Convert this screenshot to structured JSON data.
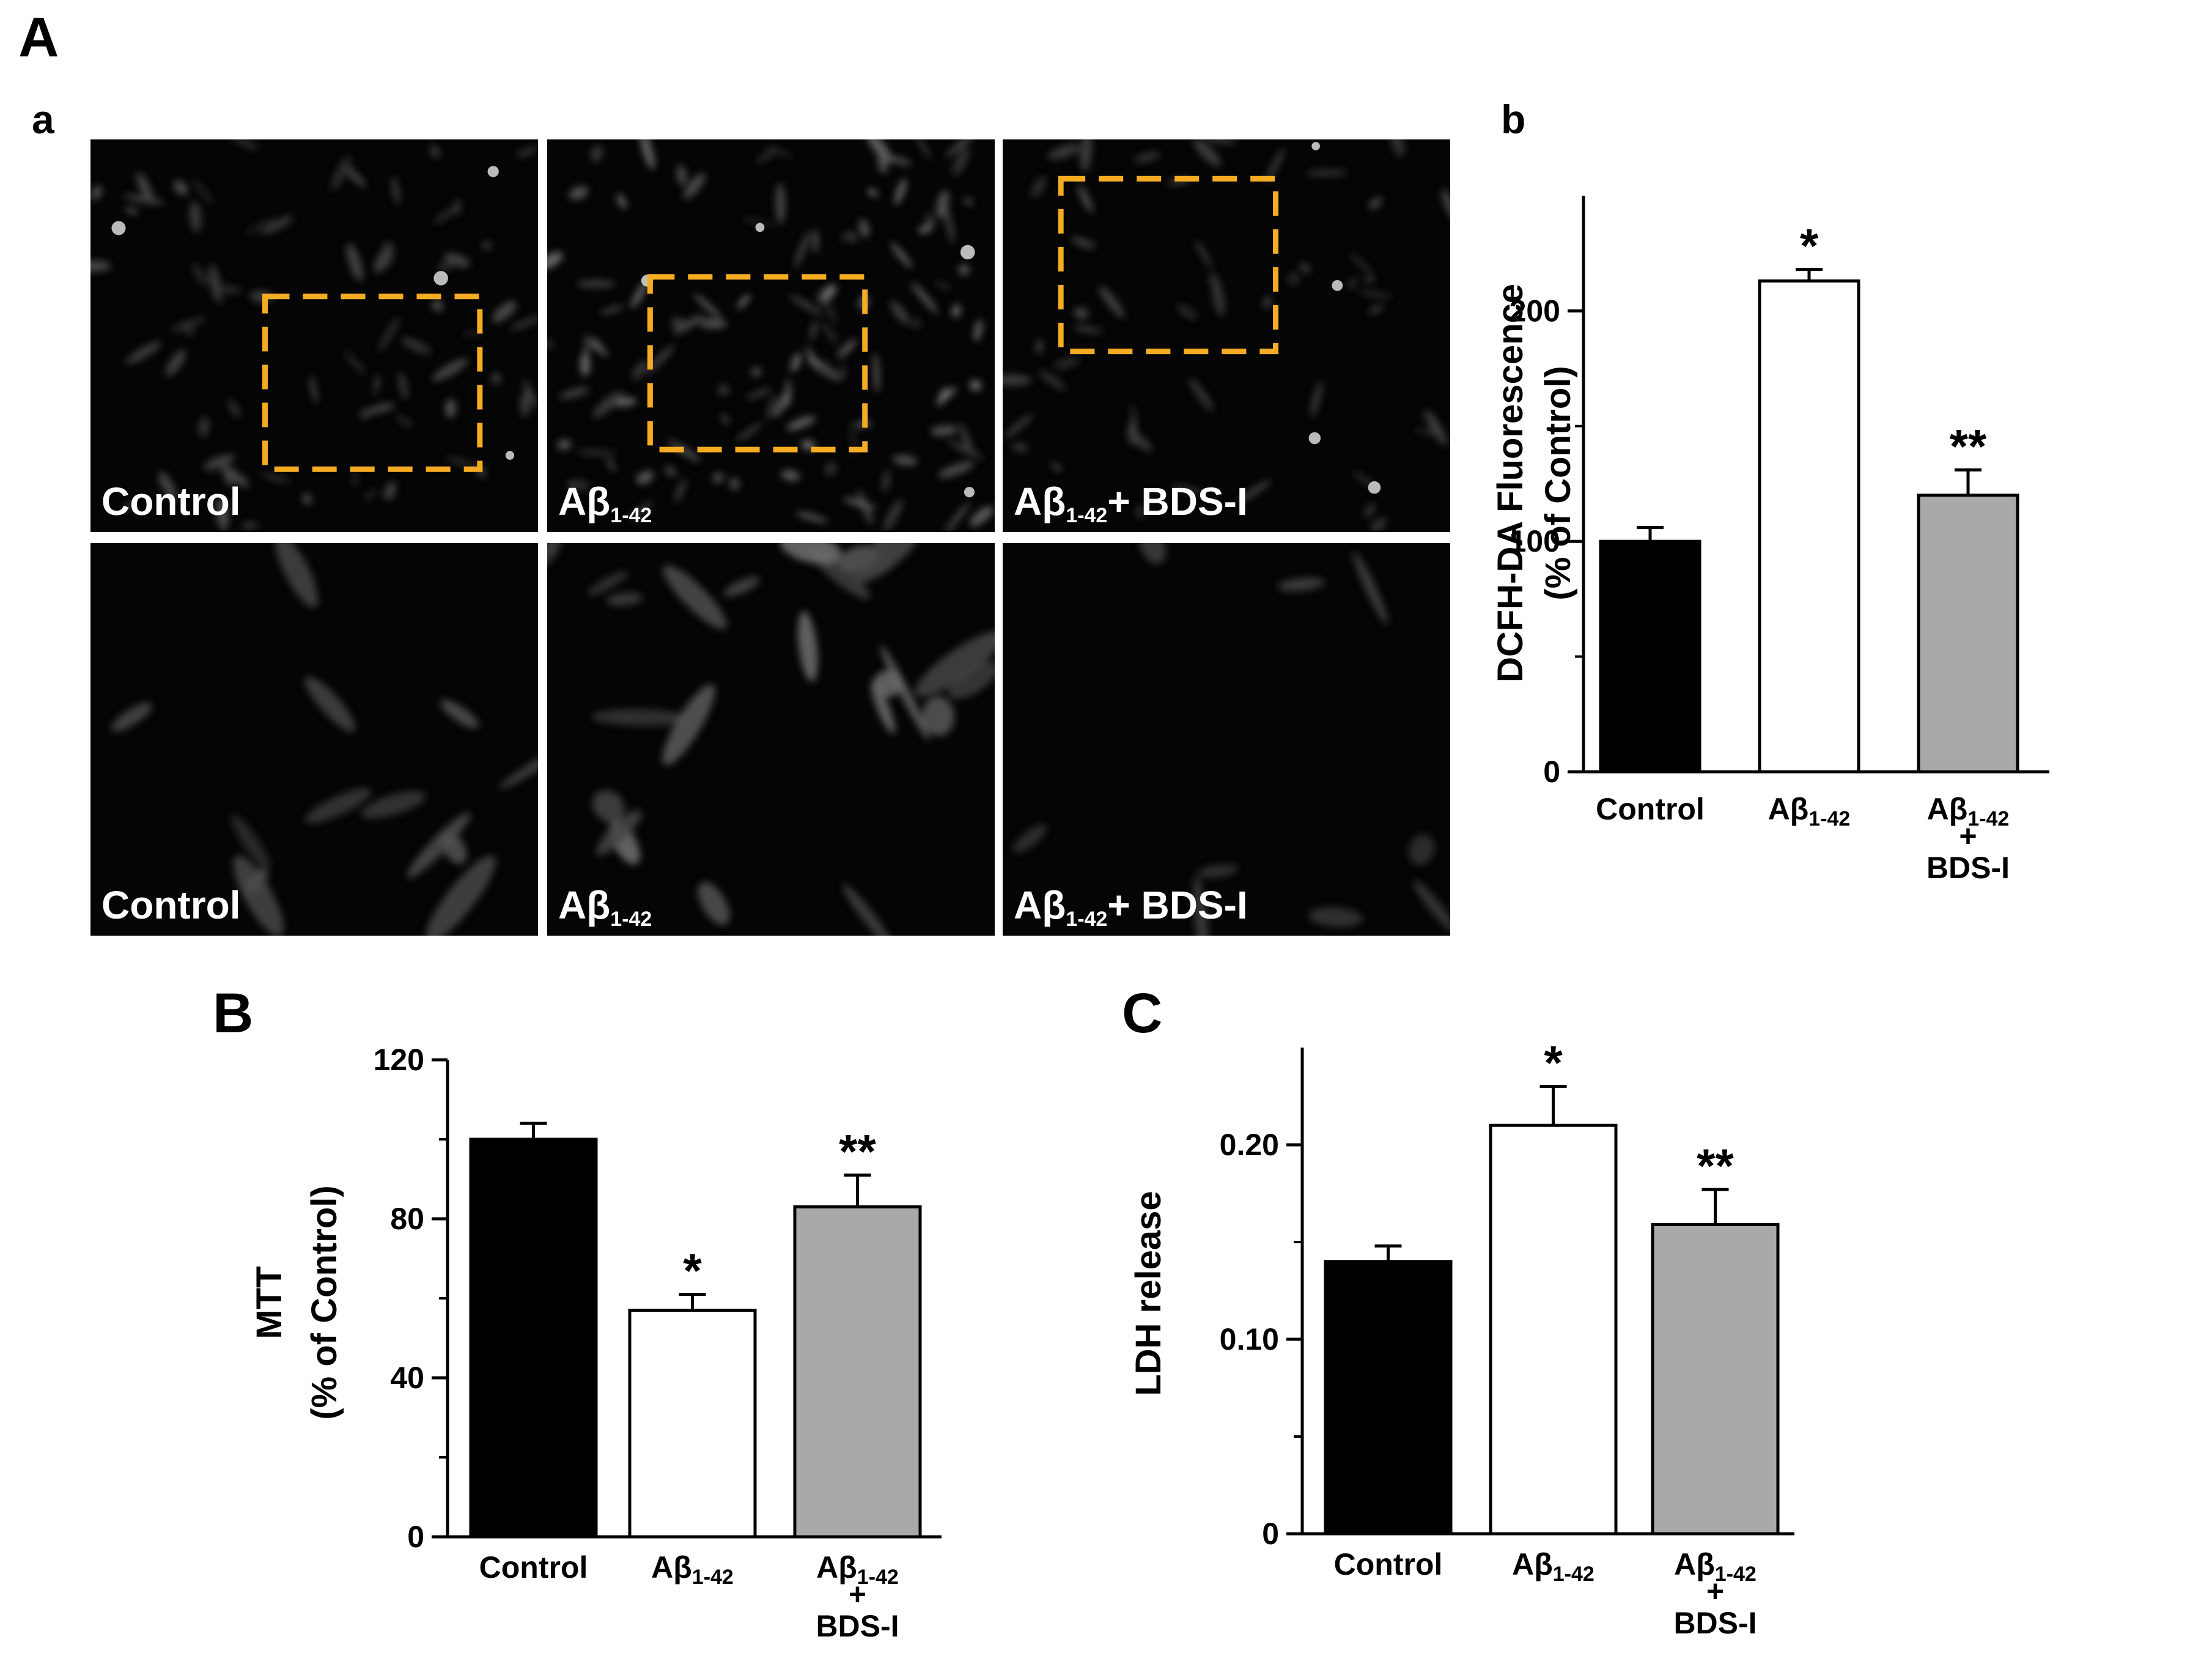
{
  "figure": {
    "panel_labels": {
      "A": "A",
      "a": "a",
      "b": "b",
      "B": "B",
      "C": "C"
    },
    "micrographs": {
      "rows": [
        [
          {
            "label_main": "Control",
            "label_sub": "",
            "label_tail": "",
            "roi": [
              0.39,
              0.4,
              0.48,
              0.44
            ]
          },
          {
            "label_main": "Aβ",
            "label_sub": "1-42",
            "label_tail": "",
            "roi": [
              0.23,
              0.35,
              0.48,
              0.44
            ]
          },
          {
            "label_main": "Aβ",
            "label_sub": "1-42",
            "label_tail": "+ BDS-I",
            "roi": [
              0.13,
              0.1,
              0.48,
              0.44
            ]
          }
        ],
        [
          {
            "label_main": "Control",
            "label_sub": "",
            "label_tail": ""
          },
          {
            "label_main": "Aβ",
            "label_sub": "1-42",
            "label_tail": ""
          },
          {
            "label_main": "Aβ",
            "label_sub": "1-42",
            "label_tail": "+ BDS-I"
          }
        ]
      ],
      "roi_color": "#f6ac22"
    }
  },
  "chart_data": [
    {
      "panel": "b",
      "type": "bar",
      "ylabel": [
        "DCFH-DA Fluorescence",
        "(% of Control)"
      ],
      "ylim": [
        0,
        250
      ],
      "yticks": [
        0,
        100,
        200
      ],
      "ytick_labels": [
        "0",
        "100",
        "200"
      ],
      "categories": [
        {
          "main": "Control",
          "sub": "",
          "line2": "",
          "line3": ""
        },
        {
          "main": "Aβ",
          "sub": "1-42",
          "line2": "",
          "line3": ""
        },
        {
          "main": "Aβ",
          "sub": "1-42",
          "line2": "+",
          "line3": "BDS-I"
        }
      ],
      "values": [
        100,
        213,
        120
      ],
      "errors": [
        6,
        5,
        11
      ],
      "significance": [
        "",
        "*",
        "**"
      ],
      "colors": [
        "#000000",
        "#ffffff",
        "#a9a9a9"
      ]
    },
    {
      "panel": "B",
      "type": "bar",
      "ylabel": [
        "MTT",
        "(% of Control)"
      ],
      "ylim": [
        0,
        120
      ],
      "yticks": [
        0,
        40,
        80,
        120
      ],
      "ytick_labels": [
        "0",
        "40",
        "80",
        "120"
      ],
      "categories": [
        {
          "main": "Control",
          "sub": "",
          "line2": "",
          "line3": ""
        },
        {
          "main": "Aβ",
          "sub": "1-42",
          "line2": "",
          "line3": ""
        },
        {
          "main": "Aβ",
          "sub": "1-42",
          "line2": "+",
          "line3": "BDS-I"
        }
      ],
      "values": [
        100,
        57,
        83
      ],
      "errors": [
        4,
        4,
        8
      ],
      "significance": [
        "",
        "*",
        "**"
      ],
      "colors": [
        "#000000",
        "#ffffff",
        "#a9a9a9"
      ]
    },
    {
      "panel": "C",
      "type": "bar",
      "ylabel": [
        "LDH release"
      ],
      "ylim": [
        0,
        0.25
      ],
      "yticks": [
        0,
        0.1,
        0.2
      ],
      "ytick_labels": [
        "0",
        "0.10",
        "0.20"
      ],
      "categories": [
        {
          "main": "Control",
          "sub": "",
          "line2": "",
          "line3": ""
        },
        {
          "main": "Aβ",
          "sub": "1-42",
          "line2": "",
          "line3": ""
        },
        {
          "main": "Aβ",
          "sub": "1-42",
          "line2": "+",
          "line3": "BDS-I"
        }
      ],
      "values": [
        0.14,
        0.21,
        0.159
      ],
      "errors": [
        0.008,
        0.02,
        0.018
      ],
      "significance": [
        "",
        "*",
        "**"
      ],
      "colors": [
        "#000000",
        "#ffffff",
        "#a9a9a9"
      ]
    }
  ]
}
